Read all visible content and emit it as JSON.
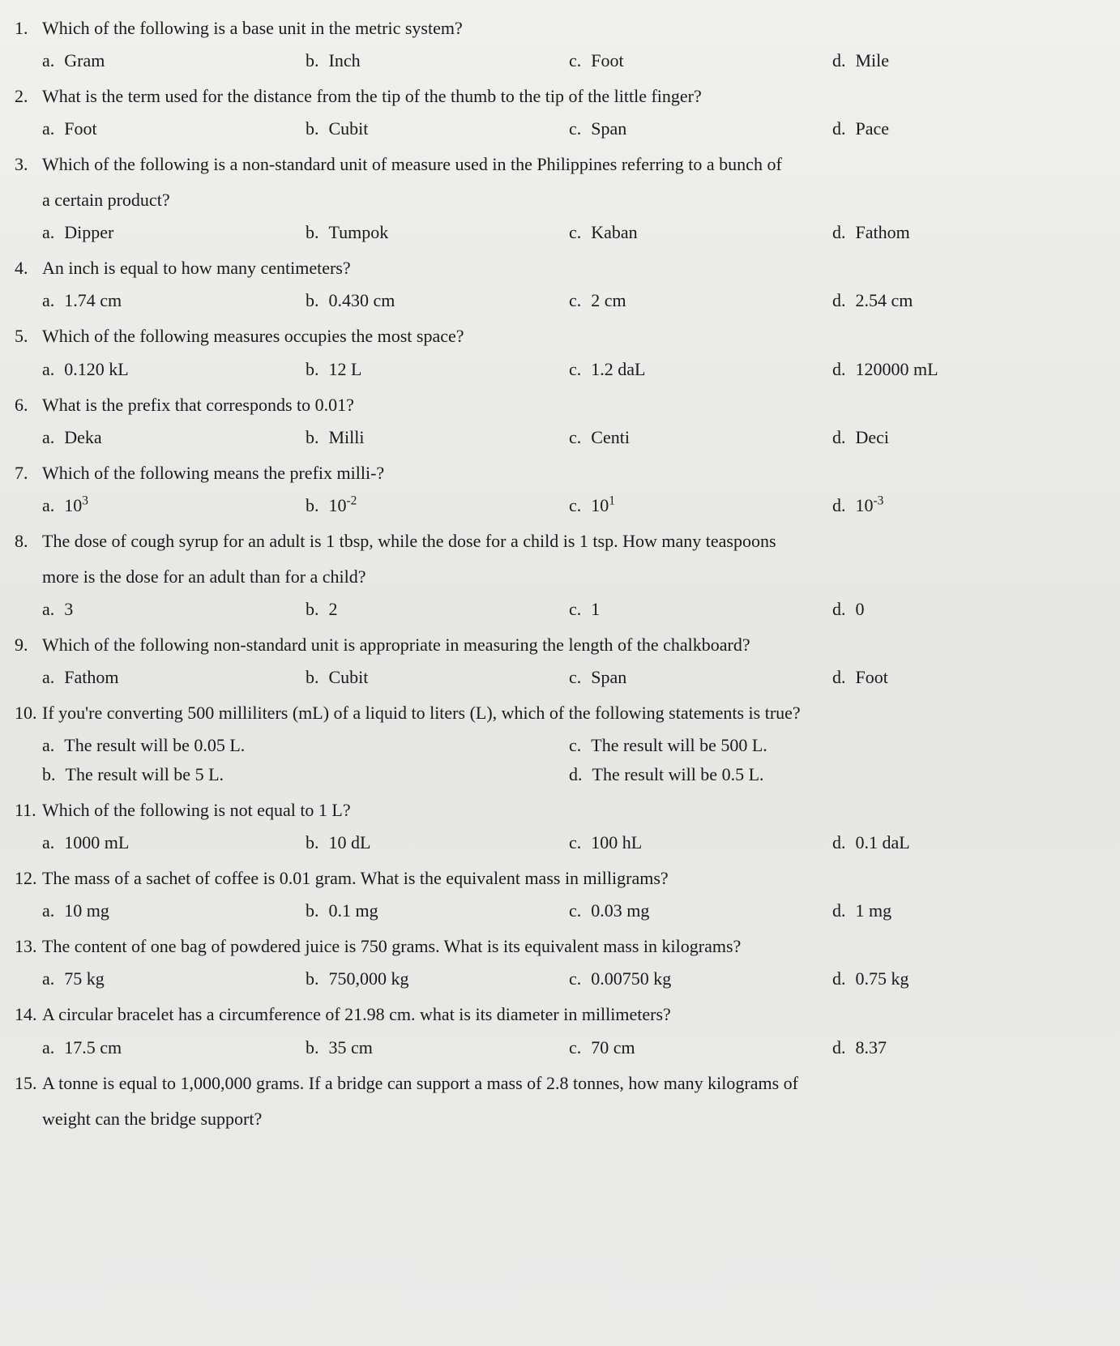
{
  "questions": [
    {
      "num": "1.",
      "text": "Which of the following is a base unit in the metric system?",
      "options": [
        {
          "letter": "a.",
          "text": "Gram"
        },
        {
          "letter": "b.",
          "text": "Inch"
        },
        {
          "letter": "c.",
          "text": "Foot"
        },
        {
          "letter": "d.",
          "text": "Mile"
        }
      ]
    },
    {
      "num": "2.",
      "text": "What is the term used for the distance from the tip of the thumb to the tip of the little finger?",
      "options": [
        {
          "letter": "a.",
          "text": "Foot"
        },
        {
          "letter": "b.",
          "text": "Cubit"
        },
        {
          "letter": "c.",
          "text": "Span"
        },
        {
          "letter": "d.",
          "text": "Pace"
        }
      ]
    },
    {
      "num": "3.",
      "text": "Which of the following is a non-standard unit of measure used in the Philippines referring to a bunch of",
      "text2": "a certain product?",
      "options": [
        {
          "letter": "a.",
          "text": "Dipper"
        },
        {
          "letter": "b.",
          "text": "Tumpok"
        },
        {
          "letter": "c.",
          "text": "Kaban"
        },
        {
          "letter": "d.",
          "text": "Fathom"
        }
      ]
    },
    {
      "num": "4.",
      "text": "An inch is equal to how many centimeters?",
      "options": [
        {
          "letter": "a.",
          "text": "1.74 cm"
        },
        {
          "letter": "b.",
          "text": "0.430 cm"
        },
        {
          "letter": "c.",
          "text": "2 cm"
        },
        {
          "letter": "d.",
          "text": "2.54 cm"
        }
      ]
    },
    {
      "num": "5.",
      "text": "Which of the following measures occupies the most space?",
      "options": [
        {
          "letter": "a.",
          "text": "0.120 kL"
        },
        {
          "letter": "b.",
          "text": "12 L"
        },
        {
          "letter": "c.",
          "text": "1.2 daL"
        },
        {
          "letter": "d.",
          "text": "120000 mL"
        }
      ]
    },
    {
      "num": "6.",
      "text": "What is the prefix that corresponds to 0.01?",
      "options": [
        {
          "letter": "a.",
          "text": "Deka"
        },
        {
          "letter": "b.",
          "text": "Milli"
        },
        {
          "letter": "c.",
          "text": "Centi"
        },
        {
          "letter": "d.",
          "text": "Deci"
        }
      ]
    },
    {
      "num": "7.",
      "text": "Which of the following means the prefix milli-?",
      "options": [
        {
          "letter": "a.",
          "text": "10",
          "sup": "3"
        },
        {
          "letter": "b.",
          "text": "10",
          "sup": "-2"
        },
        {
          "letter": "c.",
          "text": "10",
          "sup": "1"
        },
        {
          "letter": "d.",
          "text": "10",
          "sup": "-3"
        }
      ]
    },
    {
      "num": "8.",
      "text": "The dose of cough syrup for an adult is 1 tbsp, while the dose for a child is 1 tsp. How many teaspoons",
      "text2": "more is the dose for an adult than for a child?",
      "options": [
        {
          "letter": "a.",
          "text": "3"
        },
        {
          "letter": "b.",
          "text": "2"
        },
        {
          "letter": "c.",
          "text": "1"
        },
        {
          "letter": "d.",
          "text": "0"
        }
      ]
    },
    {
      "num": "9.",
      "text": "Which of the following non-standard unit is appropriate in measuring the length of the chalkboard?",
      "options": [
        {
          "letter": "a.",
          "text": "Fathom"
        },
        {
          "letter": "b.",
          "text": "Cubit"
        },
        {
          "letter": "c.",
          "text": "Span"
        },
        {
          "letter": "d.",
          "text": "Foot"
        }
      ]
    },
    {
      "num": "10.",
      "text": "If you're converting 500 milliliters (mL) of a liquid to liters (L), which of the following statements is true?",
      "twocol": true,
      "options": [
        {
          "letter": "a.",
          "text": "The result will be 0.05 L."
        },
        {
          "letter": "c.",
          "text": "The result will be 500 L."
        },
        {
          "letter": "b.",
          "text": "The result will be 5 L."
        },
        {
          "letter": "d.",
          "text": "The result will be 0.5 L."
        }
      ]
    },
    {
      "num": "11.",
      "text": "Which of the following is not equal to 1 L?",
      "options": [
        {
          "letter": "a.",
          "text": "1000 mL"
        },
        {
          "letter": "b.",
          "text": "10 dL"
        },
        {
          "letter": "c.",
          "text": "100 hL"
        },
        {
          "letter": "d.",
          "text": "0.1 daL"
        }
      ]
    },
    {
      "num": "12.",
      "text": "The mass of a sachet of coffee is 0.01 gram. What is the equivalent mass in milligrams?",
      "options": [
        {
          "letter": "a.",
          "text": "10 mg"
        },
        {
          "letter": "b.",
          "text": "0.1 mg"
        },
        {
          "letter": "c.",
          "text": "0.03 mg"
        },
        {
          "letter": "d.",
          "text": "1 mg"
        }
      ]
    },
    {
      "num": "13.",
      "text": "The content of one bag of powdered juice is 750 grams. What is its equivalent mass in kilograms?",
      "options": [
        {
          "letter": "a.",
          "text": "75 kg"
        },
        {
          "letter": "b.",
          "text": "750,000 kg"
        },
        {
          "letter": "c.",
          "text": "0.00750 kg"
        },
        {
          "letter": "d.",
          "text": "0.75 kg"
        }
      ]
    },
    {
      "num": "14.",
      "text": "A circular bracelet has a circumference of 21.98 cm. what is its diameter in millimeters?",
      "options": [
        {
          "letter": "a.",
          "text": "17.5 cm"
        },
        {
          "letter": "b.",
          "text": "35 cm"
        },
        {
          "letter": "c.",
          "text": "70 cm"
        },
        {
          "letter": "d.",
          "text": "8.37"
        }
      ]
    },
    {
      "num": "15.",
      "text": "A tonne is equal to 1,000,000 grams. If a bridge can support a mass of 2.8 tonnes, how many kilograms of",
      "text2": "weight can the bridge support?"
    }
  ]
}
